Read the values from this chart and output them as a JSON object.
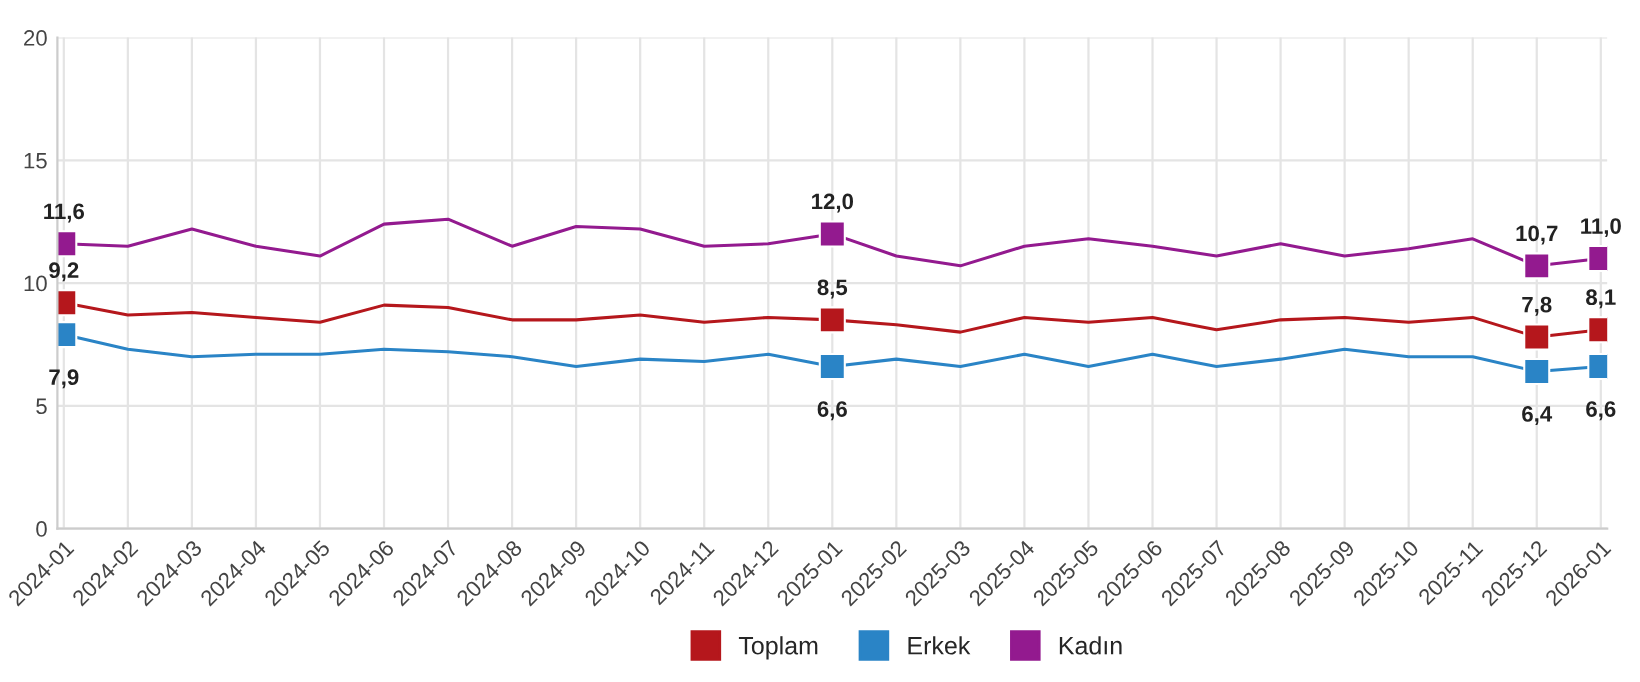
{
  "chart_data": {
    "type": "line",
    "categories": [
      "2024-01",
      "2024-02",
      "2024-03",
      "2024-04",
      "2024-05",
      "2024-06",
      "2024-07",
      "2024-08",
      "2024-09",
      "2024-10",
      "2024-11",
      "2024-12",
      "2025-01",
      "2025-02",
      "2025-03",
      "2025-04",
      "2025-05",
      "2025-06",
      "2025-07",
      "2025-08",
      "2025-09",
      "2025-10",
      "2025-11",
      "2025-12",
      "2026-01"
    ],
    "series": [
      {
        "name": "Toplam",
        "color": "#b5171c",
        "values": [
          9.2,
          8.7,
          8.8,
          8.6,
          8.4,
          9.1,
          9.0,
          8.5,
          8.5,
          8.7,
          8.4,
          8.6,
          8.5,
          8.3,
          8.0,
          8.6,
          8.4,
          8.6,
          8.1,
          8.5,
          8.6,
          8.4,
          8.6,
          7.8,
          8.1
        ],
        "value_labels": [
          "9,2",
          null,
          null,
          null,
          null,
          null,
          null,
          null,
          null,
          null,
          null,
          null,
          "8,5",
          null,
          null,
          null,
          null,
          null,
          null,
          null,
          null,
          null,
          null,
          "7,8",
          "8,1"
        ]
      },
      {
        "name": "Erkek",
        "color": "#2a84c6",
        "values": [
          7.9,
          7.3,
          7.0,
          7.1,
          7.1,
          7.3,
          7.2,
          7.0,
          6.6,
          6.9,
          6.8,
          7.1,
          6.6,
          6.9,
          6.6,
          7.1,
          6.6,
          7.1,
          6.6,
          6.9,
          7.3,
          7.0,
          7.0,
          6.4,
          6.6
        ],
        "value_labels": [
          "7,9",
          null,
          null,
          null,
          null,
          null,
          null,
          null,
          null,
          null,
          null,
          null,
          "6,6",
          null,
          null,
          null,
          null,
          null,
          null,
          null,
          null,
          null,
          null,
          "6,4",
          "6,6"
        ]
      },
      {
        "name": "Kadın",
        "color": "#931a8f",
        "values": [
          11.6,
          11.5,
          12.2,
          11.5,
          11.1,
          12.4,
          12.6,
          11.5,
          12.3,
          12.2,
          11.5,
          11.6,
          12.0,
          11.1,
          10.7,
          11.5,
          11.8,
          11.5,
          11.1,
          11.6,
          11.1,
          11.4,
          11.8,
          10.7,
          11.0
        ],
        "value_labels": [
          "11,6",
          null,
          null,
          null,
          null,
          null,
          null,
          null,
          null,
          null,
          null,
          null,
          "12,0",
          null,
          null,
          null,
          null,
          null,
          null,
          null,
          null,
          null,
          null,
          "10,7",
          "11,0"
        ]
      }
    ],
    "ylim": [
      0,
      20
    ],
    "yticks": [
      0,
      5,
      10,
      15,
      20
    ],
    "grid": true,
    "legend": "bottom",
    "line_style": "solid"
  }
}
